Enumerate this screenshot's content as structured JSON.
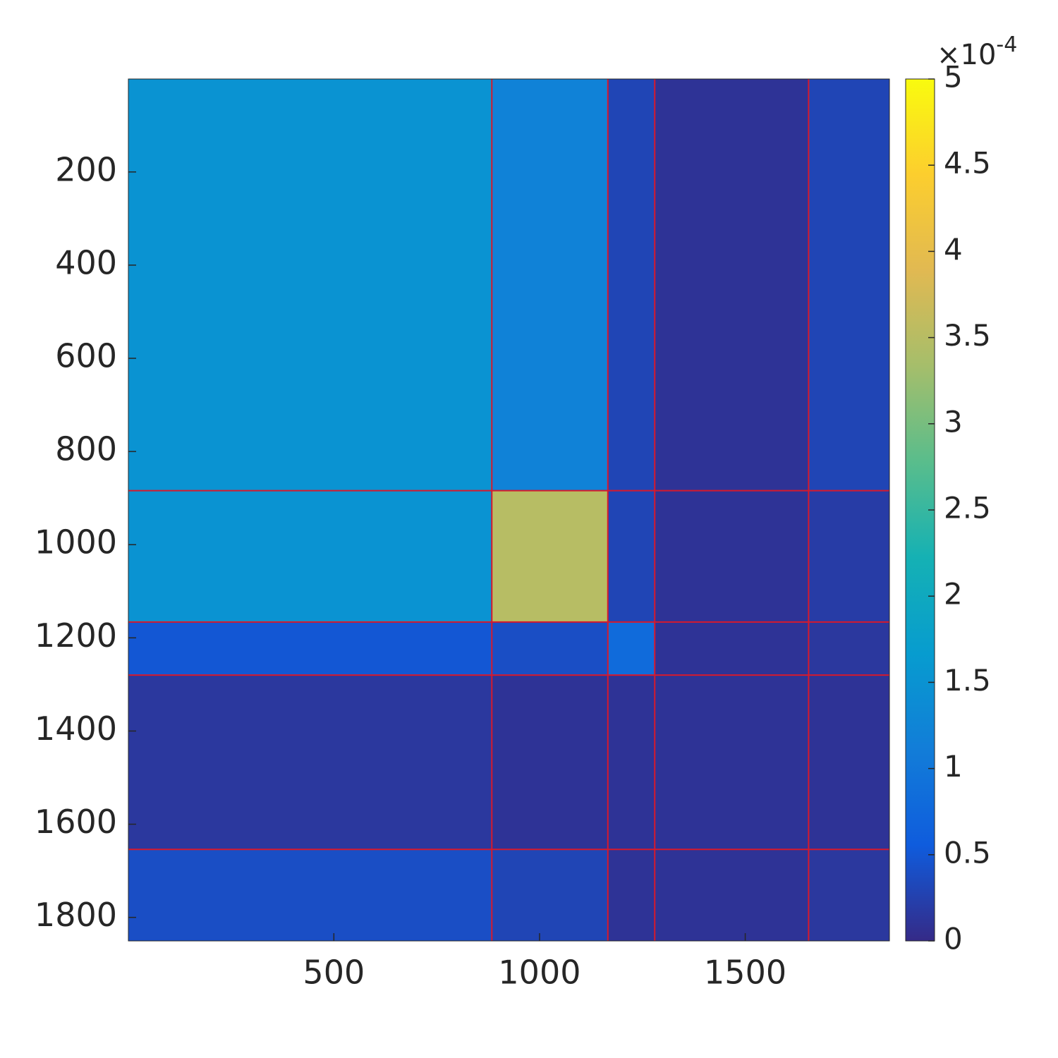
{
  "chart_data": {
    "type": "heatmap",
    "colormap": "parula",
    "xlim": [
      0.5,
      1850.5
    ],
    "ylim": [
      0.5,
      1850.5
    ],
    "y_reversed": true,
    "xticks": [
      500,
      1000,
      1500
    ],
    "yticks": [
      200,
      400,
      600,
      800,
      1000,
      1200,
      1400,
      1600,
      1800
    ],
    "boundaries": [
      884,
      1166,
      1280,
      1654
    ],
    "boundary_color": "#d7192c",
    "values": [
      [
        0.00015,
        0.00012,
        3e-05,
        1e-05,
        3e-05
      ],
      [
        0.00015,
        0.00035,
        3e-05,
        1e-05,
        2e-05
      ],
      [
        5e-05,
        4e-05,
        8e-05,
        1e-05,
        1.5e-05
      ],
      [
        1.5e-05,
        1e-05,
        1e-05,
        1e-05,
        1e-05
      ],
      [
        4e-05,
        3e-05,
        1e-05,
        1e-05,
        1.5e-05
      ]
    ],
    "clim": [
      0,
      0.0005
    ],
    "colorbar_ticks": [
      0,
      {
        "value": 5e-05,
        "label": "0.5"
      },
      {
        "value": 0.0001,
        "label": "1"
      },
      {
        "value": 0.00015,
        "label": "1.5"
      },
      {
        "value": 0.0002,
        "label": "2"
      },
      {
        "value": 0.00025,
        "label": "2.5"
      },
      {
        "value": 0.0003,
        "label": "3"
      },
      {
        "value": 0.00035,
        "label": "3.5"
      },
      {
        "value": 0.0004,
        "label": "4"
      },
      {
        "value": 0.00045,
        "label": "4.5"
      },
      {
        "value": 0.0005,
        "label": "5"
      }
    ],
    "colorbar_exponent": {
      "base": "×10",
      "power": "-4"
    }
  }
}
